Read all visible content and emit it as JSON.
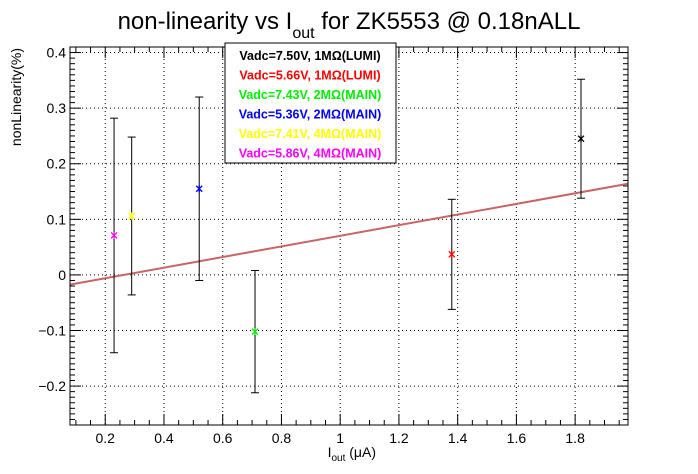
{
  "chart_data": {
    "type": "scatter",
    "title": {
      "main": "non-linearity vs I",
      "sub": "out",
      "rest": " for ZK5553 @ 0.18nALL"
    },
    "xlabel": {
      "main": "I",
      "sub": "out",
      "rest": " (μA)"
    },
    "ylabel": "nonLinearity(%)",
    "xlim": [
      0.08,
      1.98
    ],
    "ylim": [
      -0.27,
      0.41
    ],
    "x_ticks": [
      0.2,
      0.4,
      0.6,
      0.8,
      1.0,
      1.2,
      1.4,
      1.6,
      1.8
    ],
    "x_tick_labels": [
      "0.2",
      "0.4",
      "0.6",
      "0.8",
      "1",
      "1.2",
      "1.4",
      "1.6",
      "1.8"
    ],
    "y_ticks": [
      -0.2,
      -0.1,
      0.0,
      0.1,
      0.2,
      0.3,
      0.4
    ],
    "y_tick_labels": [
      "−0.2",
      "−0.1",
      "0",
      "0.1",
      "0.2",
      "0.3",
      "0.4"
    ],
    "grid": true,
    "legend_position": "top-center",
    "series": [
      {
        "name": "Vadc=7.50V, 1MΩ(LUMI)",
        "color": "#000000",
        "x": [
          1.82
        ],
        "y": [
          0.245
        ],
        "err": [
          0.107
        ]
      },
      {
        "name": "Vadc=5.66V, 1MΩ(LUMI)",
        "color": "#ff0000",
        "x": [
          1.38
        ],
        "y": [
          0.037
        ],
        "err": [
          0.099
        ]
      },
      {
        "name": "Vadc=7.43V, 2MΩ(MAIN)",
        "color": "#00ee00",
        "x": [
          0.71
        ],
        "y": [
          -0.102
        ],
        "err": [
          0.11
        ]
      },
      {
        "name": "Vadc=5.36V, 2MΩ(MAIN)",
        "color": "#0000ff",
        "x": [
          0.52
        ],
        "y": [
          0.155
        ],
        "err": [
          0.165
        ]
      },
      {
        "name": "Vadc=7.41V, 4MΩ(MAIN)",
        "color": "#ffff00",
        "x": [
          0.29
        ],
        "y": [
          0.106
        ],
        "err": [
          0.142
        ]
      },
      {
        "name": "Vadc=5.86V, 4MΩ(MAIN)",
        "color": "#ff00ff",
        "x": [
          0.23
        ],
        "y": [
          0.071
        ],
        "err": [
          0.211
        ]
      }
    ],
    "fit_line": {
      "color": "#c86464",
      "x": [
        0.08,
        1.98
      ],
      "y": [
        -0.0175,
        0.164
      ]
    }
  }
}
